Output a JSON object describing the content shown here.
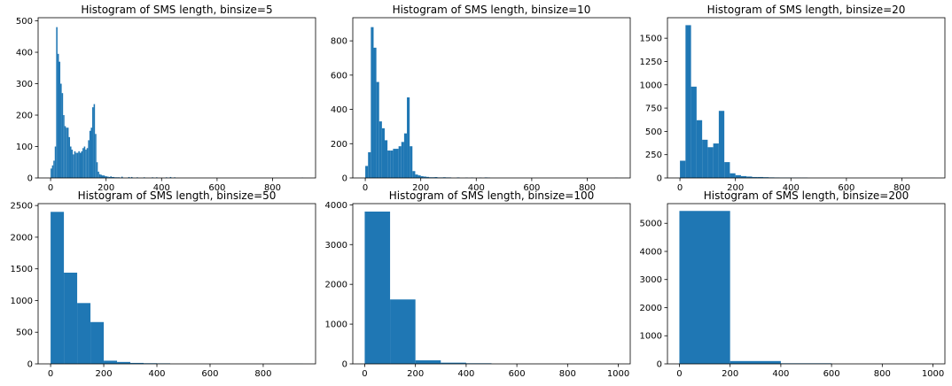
{
  "chart_data": [
    {
      "type": "bar",
      "title": "Histogram of SMS length, binsize=5",
      "xlabel": "",
      "ylabel": "",
      "xlim": [
        -45,
        955
      ],
      "ylim": [
        0,
        510
      ],
      "xticks": [
        0,
        200,
        400,
        600,
        800
      ],
      "yticks": [
        0,
        100,
        200,
        300,
        400,
        500
      ],
      "color": "#1f77b4",
      "bins": [
        [
          0,
          5,
          30
        ],
        [
          5,
          10,
          40
        ],
        [
          10,
          15,
          55
        ],
        [
          15,
          20,
          100
        ],
        [
          20,
          25,
          480
        ],
        [
          25,
          30,
          395
        ],
        [
          30,
          35,
          370
        ],
        [
          35,
          40,
          300
        ],
        [
          40,
          45,
          270
        ],
        [
          45,
          50,
          200
        ],
        [
          50,
          55,
          165
        ],
        [
          55,
          60,
          160
        ],
        [
          60,
          65,
          160
        ],
        [
          65,
          70,
          130
        ],
        [
          70,
          75,
          100
        ],
        [
          75,
          80,
          90
        ],
        [
          80,
          85,
          75
        ],
        [
          85,
          90,
          85
        ],
        [
          90,
          95,
          80
        ],
        [
          95,
          100,
          80
        ],
        [
          100,
          105,
          85
        ],
        [
          105,
          110,
          80
        ],
        [
          110,
          115,
          85
        ],
        [
          115,
          120,
          95
        ],
        [
          120,
          125,
          100
        ],
        [
          125,
          130,
          90
        ],
        [
          130,
          135,
          95
        ],
        [
          135,
          140,
          120
        ],
        [
          140,
          145,
          150
        ],
        [
          145,
          150,
          160
        ],
        [
          150,
          155,
          225
        ],
        [
          155,
          160,
          235
        ],
        [
          160,
          165,
          140
        ],
        [
          165,
          170,
          50
        ],
        [
          170,
          175,
          20
        ],
        [
          175,
          180,
          12
        ],
        [
          180,
          185,
          10
        ],
        [
          185,
          190,
          8
        ],
        [
          190,
          195,
          8
        ],
        [
          195,
          200,
          6
        ],
        [
          200,
          205,
          5
        ],
        [
          205,
          210,
          4
        ],
        [
          210,
          215,
          3
        ],
        [
          215,
          220,
          5
        ],
        [
          220,
          225,
          3
        ],
        [
          225,
          230,
          3
        ],
        [
          230,
          240,
          2
        ],
        [
          240,
          250,
          2
        ],
        [
          255,
          260,
          4
        ],
        [
          280,
          285,
          3
        ],
        [
          290,
          295,
          3
        ],
        [
          310,
          315,
          2
        ],
        [
          335,
          340,
          2
        ],
        [
          365,
          370,
          2
        ],
        [
          380,
          385,
          2
        ],
        [
          415,
          420,
          2
        ],
        [
          430,
          435,
          3
        ],
        [
          445,
          450,
          2
        ],
        [
          905,
          910,
          1
        ]
      ]
    },
    {
      "type": "bar",
      "title": "Histogram of SMS length, binsize=10",
      "xlabel": "",
      "ylabel": "",
      "xlim": [
        -45,
        955
      ],
      "ylim": [
        0,
        935
      ],
      "xticks": [
        0,
        200,
        400,
        600,
        800
      ],
      "yticks": [
        0,
        200,
        400,
        600,
        800
      ],
      "color": "#1f77b4",
      "bins": [
        [
          0,
          10,
          70
        ],
        [
          10,
          20,
          150
        ],
        [
          20,
          30,
          880
        ],
        [
          30,
          40,
          760
        ],
        [
          40,
          50,
          560
        ],
        [
          50,
          60,
          330
        ],
        [
          60,
          70,
          290
        ],
        [
          70,
          80,
          220
        ],
        [
          80,
          90,
          160
        ],
        [
          90,
          100,
          160
        ],
        [
          100,
          110,
          170
        ],
        [
          110,
          120,
          170
        ],
        [
          120,
          130,
          185
        ],
        [
          130,
          140,
          210
        ],
        [
          140,
          150,
          260
        ],
        [
          150,
          160,
          470
        ],
        [
          160,
          170,
          185
        ],
        [
          170,
          180,
          40
        ],
        [
          180,
          190,
          20
        ],
        [
          190,
          200,
          15
        ],
        [
          200,
          210,
          10
        ],
        [
          210,
          220,
          8
        ],
        [
          220,
          230,
          6
        ],
        [
          230,
          240,
          4
        ],
        [
          240,
          250,
          4
        ],
        [
          250,
          260,
          5
        ],
        [
          260,
          270,
          3
        ],
        [
          270,
          280,
          3
        ],
        [
          280,
          290,
          4
        ],
        [
          290,
          300,
          3
        ],
        [
          300,
          310,
          3
        ],
        [
          330,
          340,
          3
        ],
        [
          360,
          370,
          2
        ],
        [
          380,
          390,
          2
        ],
        [
          410,
          420,
          2
        ],
        [
          430,
          440,
          3
        ],
        [
          440,
          450,
          2
        ],
        [
          900,
          910,
          1
        ]
      ]
    },
    {
      "type": "bar",
      "title": "Histogram of SMS length, binsize=20",
      "xlabel": "",
      "ylabel": "",
      "xlim": [
        -45,
        955
      ],
      "ylim": [
        0,
        1720
      ],
      "xticks": [
        0,
        200,
        400,
        600,
        800
      ],
      "yticks": [
        0,
        250,
        500,
        750,
        1000,
        1250,
        1500
      ],
      "color": "#1f77b4",
      "bins": [
        [
          0,
          20,
          185
        ],
        [
          20,
          40,
          1640
        ],
        [
          40,
          60,
          980
        ],
        [
          60,
          80,
          620
        ],
        [
          80,
          100,
          410
        ],
        [
          100,
          120,
          330
        ],
        [
          120,
          140,
          370
        ],
        [
          140,
          160,
          720
        ],
        [
          160,
          180,
          170
        ],
        [
          180,
          200,
          50
        ],
        [
          200,
          220,
          30
        ],
        [
          220,
          240,
          20
        ],
        [
          240,
          260,
          15
        ],
        [
          260,
          280,
          10
        ],
        [
          280,
          300,
          10
        ],
        [
          300,
          320,
          8
        ],
        [
          320,
          340,
          6
        ],
        [
          340,
          360,
          5
        ],
        [
          360,
          380,
          4
        ],
        [
          380,
          400,
          4
        ],
        [
          400,
          420,
          3
        ],
        [
          420,
          440,
          3
        ],
        [
          440,
          460,
          3
        ],
        [
          900,
          920,
          1
        ]
      ]
    },
    {
      "type": "bar",
      "title": "Histogram of SMS length, binsize=50",
      "xlabel": "",
      "ylabel": "",
      "xlim": [
        -47,
        997
      ],
      "ylim": [
        0,
        2530
      ],
      "xticks": [
        0,
        200,
        400,
        600,
        800
      ],
      "yticks": [
        0,
        500,
        1000,
        1500,
        2000,
        2500
      ],
      "color": "#1f77b4",
      "bins": [
        [
          0,
          50,
          2400
        ],
        [
          50,
          100,
          1440
        ],
        [
          100,
          150,
          960
        ],
        [
          150,
          200,
          660
        ],
        [
          200,
          250,
          50
        ],
        [
          250,
          300,
          30
        ],
        [
          300,
          350,
          15
        ],
        [
          350,
          400,
          10
        ],
        [
          400,
          450,
          8
        ],
        [
          900,
          950,
          2
        ]
      ]
    },
    {
      "type": "bar",
      "title": "Histogram of SMS length, binsize=100",
      "xlabel": "",
      "ylabel": "",
      "xlim": [
        -47,
        1047
      ],
      "ylim": [
        0,
        4030
      ],
      "xticks": [
        0,
        200,
        400,
        600,
        800,
        1000
      ],
      "yticks": [
        0,
        1000,
        2000,
        3000,
        4000
      ],
      "color": "#1f77b4",
      "bins": [
        [
          0,
          100,
          3830
        ],
        [
          100,
          200,
          1620
        ],
        [
          200,
          300,
          90
        ],
        [
          300,
          400,
          30
        ],
        [
          400,
          500,
          15
        ],
        [
          900,
          1000,
          1
        ]
      ]
    },
    {
      "type": "bar",
      "title": "Histogram of SMS length, binsize=200",
      "xlabel": "",
      "ylabel": "",
      "xlim": [
        -47,
        1047
      ],
      "ylim": [
        0,
        5700
      ],
      "xticks": [
        0,
        200,
        400,
        600,
        800,
        1000
      ],
      "yticks": [
        0,
        1000,
        2000,
        3000,
        4000,
        5000
      ],
      "color": "#1f77b4",
      "bins": [
        [
          0,
          200,
          5440
        ],
        [
          200,
          400,
          100
        ],
        [
          400,
          600,
          20
        ],
        [
          800,
          1000,
          1
        ]
      ]
    }
  ]
}
